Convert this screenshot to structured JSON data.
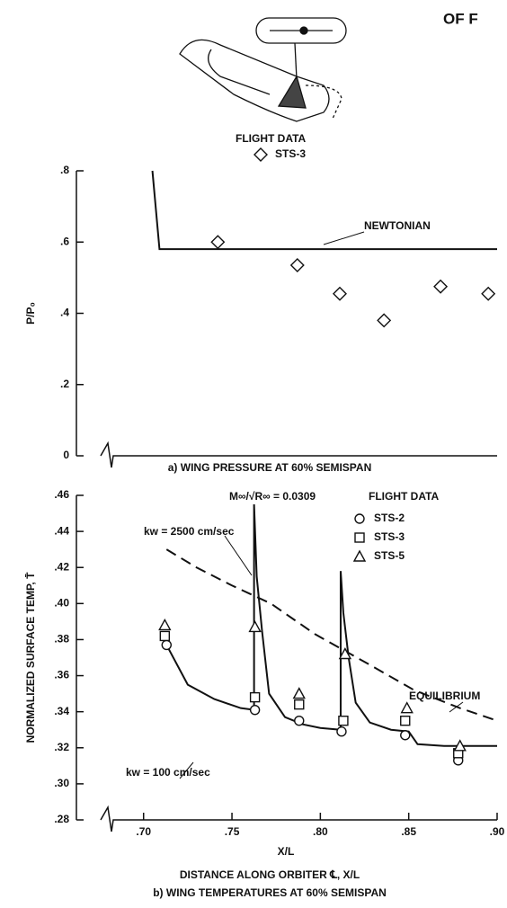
{
  "page_header": "OF F",
  "chart_data": [
    {
      "type": "line",
      "caption": "a) WING PRESSURE AT 60% SEMISPAN",
      "ylabel": "P/P₀",
      "legend_title": "FLIGHT DATA",
      "xlim": [
        0.662,
        0.9
      ],
      "ylim": [
        0,
        0.8
      ],
      "yticks": [
        0,
        {
          "value": 0.2,
          "label": ".2"
        },
        {
          "value": 0.4,
          "label": ".4"
        },
        {
          "value": 0.6,
          "label": ".6"
        },
        {
          "value": 0.8,
          "label": ".8"
        }
      ],
      "series": [
        {
          "name": "NEWTONIAN",
          "color": "#111",
          "line": "solid",
          "x": [
            0.705,
            0.709,
            0.9
          ],
          "values": [
            0.8,
            0.58,
            0.58
          ]
        },
        {
          "name": "STS-3",
          "color": "#111",
          "marker": "diamond",
          "x": [
            0.742,
            0.787,
            0.811,
            0.836,
            0.868,
            0.895
          ],
          "values": [
            0.6,
            0.535,
            0.455,
            0.38,
            0.475,
            0.455
          ]
        }
      ]
    },
    {
      "type": "line",
      "caption": "b) WING TEMPERATURES AT 60% SEMISPAN",
      "xlabel": "X/L",
      "xlabel_long": "DISTANCE ALONG ORBITER ℄, X/L",
      "ylabel": "NORMALIZED SURFACE TEMP, T̄",
      "legend_title": "FLIGHT DATA",
      "annotations": [
        "M∞/√R∞ = 0.0309",
        "kw = 2500 cm/sec"
      ],
      "xlim": [
        0.662,
        0.9
      ],
      "ylim": [
        0.28,
        0.46
      ],
      "xticks": [
        {
          "value": 0.7,
          "label": ".70"
        },
        {
          "value": 0.75,
          "label": ".75"
        },
        {
          "value": 0.8,
          "label": ".80"
        },
        {
          "value": 0.85,
          "label": ".85"
        },
        {
          "value": 0.9,
          "label": ".90"
        }
      ],
      "yticks": [
        {
          "value": 0.28,
          "label": ".28"
        },
        {
          "value": 0.3,
          "label": ".30"
        },
        {
          "value": 0.32,
          "label": ".32"
        },
        {
          "value": 0.34,
          "label": ".34"
        },
        {
          "value": 0.36,
          "label": ".36"
        },
        {
          "value": 0.38,
          "label": ".38"
        },
        {
          "value": 0.4,
          "label": ".40"
        },
        {
          "value": 0.42,
          "label": ".42"
        },
        {
          "value": 0.44,
          "label": ".44"
        },
        {
          "value": 0.46,
          "label": ".46"
        }
      ],
      "series": [
        {
          "name": "EQUILIBRIUM",
          "color": "#111",
          "line": "dashed",
          "x": [
            0.713,
            0.73,
            0.75,
            0.772,
            0.797,
            0.828,
            0.853,
            0.879,
            0.9
          ],
          "values": [
            0.43,
            0.42,
            0.41,
            0.4,
            0.383,
            0.366,
            0.352,
            0.342,
            0.335
          ]
        },
        {
          "name": "kw = 100 cm/sec",
          "color": "#111",
          "line": "solid",
          "x": [
            0.713,
            0.725,
            0.74,
            0.755,
            0.7625,
            0.7625,
            0.764,
            0.767,
            0.771,
            0.78,
            0.79,
            0.8,
            0.8115,
            0.8115,
            0.813,
            0.816,
            0.82,
            0.828,
            0.84,
            0.85,
            0.855,
            0.87,
            0.9
          ],
          "values": [
            0.377,
            0.355,
            0.347,
            0.342,
            0.341,
            0.455,
            0.415,
            0.385,
            0.35,
            0.337,
            0.333,
            0.331,
            0.33,
            0.418,
            0.395,
            0.37,
            0.345,
            0.334,
            0.33,
            0.329,
            0.322,
            0.321,
            0.321
          ]
        },
        {
          "name": "STS-2",
          "color": "#111",
          "marker": "circle",
          "x": [
            0.713,
            0.763,
            0.788,
            0.812,
            0.848,
            0.878
          ],
          "values": [
            0.377,
            0.341,
            0.335,
            0.329,
            0.327,
            0.313
          ]
        },
        {
          "name": "STS-3",
          "color": "#111",
          "marker": "square",
          "x": [
            0.712,
            0.763,
            0.788,
            0.813,
            0.848,
            0.878
          ],
          "values": [
            0.382,
            0.348,
            0.344,
            0.335,
            0.335,
            0.317
          ]
        },
        {
          "name": "STS-5",
          "color": "#111",
          "marker": "triangle",
          "x": [
            0.712,
            0.763,
            0.788,
            0.814,
            0.849,
            0.879
          ],
          "values": [
            0.388,
            0.387,
            0.35,
            0.372,
            0.342,
            0.321
          ]
        }
      ]
    }
  ]
}
